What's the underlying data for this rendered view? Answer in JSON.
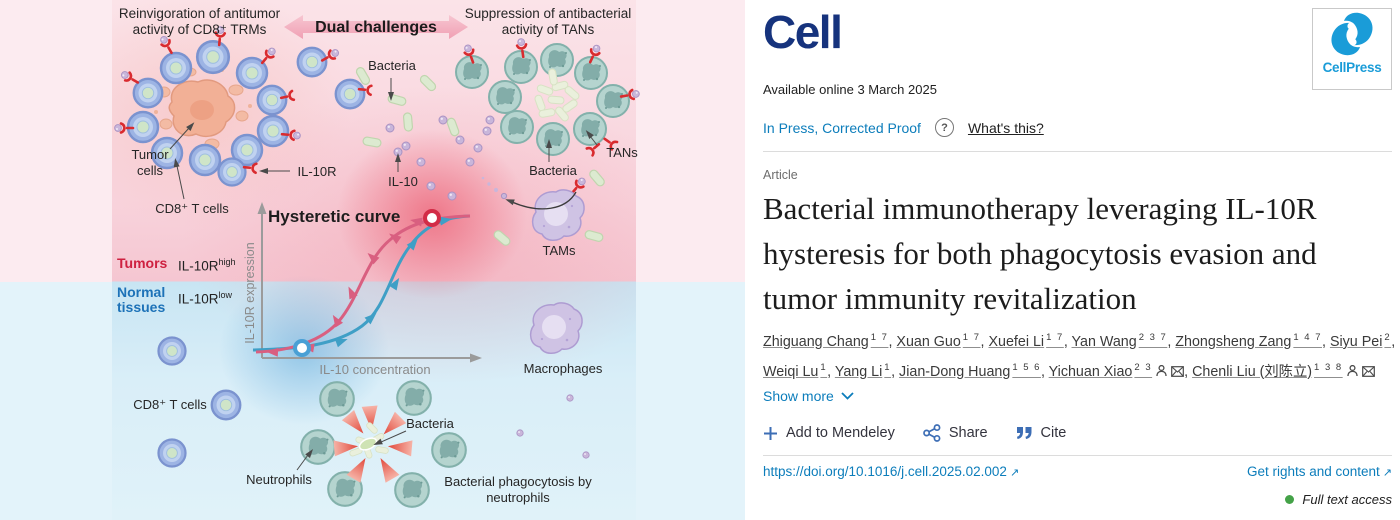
{
  "graphic": {
    "headline_left": "Reinvigoration of antitumor activity of CD8⁺ TRMs",
    "banner": "Dual challenges",
    "headline_right": "Suppression of antibacterial activity of TANs",
    "labels": {
      "bacteria_top": "Bacteria",
      "tumor_cells": "Tumor cells",
      "cd8_top": "CD8⁺ T cells",
      "il10r": "IL-10R",
      "il10": "IL-10",
      "tans": "TANs",
      "bacteria_mid": "Bacteria",
      "tams": "TAMs",
      "macrophages": "Macrophages",
      "cd8_bottom": "CD8⁺ T cells",
      "neutrophils": "Neutrophils",
      "bacteria_bottom": "Bacteria",
      "phagocytosis": "Bacterial phagocytosis by neutrophils"
    },
    "plot": {
      "title": "Hysteretic curve",
      "y_axis": "IL-10R expression",
      "x_axis": "IL-10 concentration",
      "zone_top_label": "Tumors",
      "zone_top_value_base": "IL-10R",
      "zone_top_value_sup": "high",
      "zone_bottom_label": "Normal tissues",
      "zone_bottom_value_base": "IL-10R",
      "zone_bottom_value_sup": "low"
    }
  },
  "header": {
    "journal": "Cell",
    "publisher": "CellPress",
    "available": "Available online 3 March 2025",
    "in_press": "In Press, Corrected Proof",
    "whats_this": "What's this?",
    "question_mark": "?"
  },
  "article": {
    "kicker": "Article",
    "title": "Bacterial immunotherapy leveraging IL-10R hysteresis for both phagocytosis evasion and tumor immunity revitalization",
    "title_lines": [
      "Bacterial immunotherapy leveraging IL-10R",
      "hysteresis for both phagocytosis evasion and",
      "tumor immunity revitalization"
    ],
    "show_more": "Show more"
  },
  "authors": {
    "list": [
      {
        "name": "Zhiguang Chang",
        "sup": "1 7",
        "icons": false
      },
      {
        "name": "Xuan Guo",
        "sup": "1 7",
        "icons": false
      },
      {
        "name": "Xuefei Li",
        "sup": "1 7",
        "icons": false
      },
      {
        "name": "Yan Wang",
        "sup": "2 3 7",
        "icons": false
      },
      {
        "name": "Zhongsheng Zang",
        "sup": "1 4 7",
        "icons": false
      },
      {
        "name": "Siyu Pei",
        "sup": "2",
        "icons": false
      },
      {
        "name": "Weiqi Lu",
        "sup": "1",
        "icons": false
      },
      {
        "name": "Yang Li",
        "sup": "1",
        "icons": false
      },
      {
        "name": "Jian-Dong Huang",
        "sup": "1 5 6",
        "icons": false
      },
      {
        "name": "Yichuan Xiao",
        "sup": "2 3",
        "icons": true
      },
      {
        "name": "Chenli Liu (刘陈立)",
        "sup": "1 3 8",
        "icons": true
      }
    ]
  },
  "actions": {
    "mendeley": "Add to Mendeley",
    "share": "Share",
    "cite": "Cite"
  },
  "footer": {
    "doi": "https://doi.org/10.1016/j.cell.2025.02.002",
    "rights": "Get rights and content",
    "access": "Full text access",
    "ext_arrow": "↗"
  },
  "colors": {
    "link": "#0c7dbb",
    "action_navy": "#3d6eb5",
    "cell_logo_navy": "#16337d",
    "cellpress_blue": "#1a9cd8",
    "tumors_red": "#ce2140",
    "normal_blue": "#1d72b8",
    "curve_pink": "#d95f80",
    "curve_teal": "#3f9fc6",
    "green_dot": "#44a248"
  }
}
